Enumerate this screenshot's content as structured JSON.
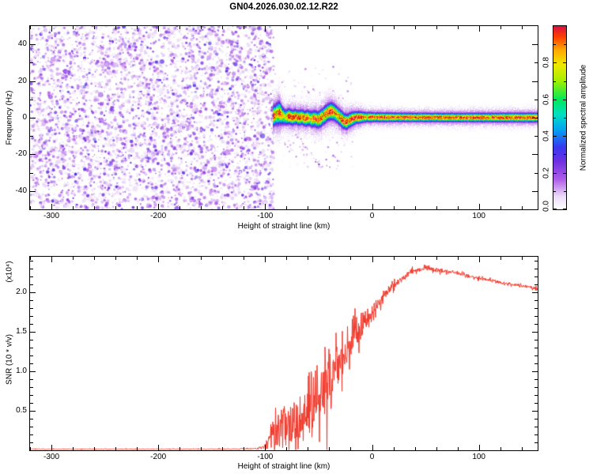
{
  "title": "GN04.2026.030.02.12.R22",
  "background": "#ffffff",
  "chart_data": [
    {
      "type": "heatmap",
      "name": "spectrogram",
      "xlabel": "Height of straight line (km)",
      "ylabel": "Frequency (Hz)",
      "xlim": [
        -320,
        155
      ],
      "ylim": [
        -50,
        50
      ],
      "xticks": {
        "values": [
          -300,
          -200,
          -100,
          0,
          100
        ],
        "labels": [
          "-300",
          "-200",
          "-100",
          "0",
          "100"
        ]
      },
      "yticks": {
        "values": [
          -40,
          -20,
          0,
          20,
          40
        ],
        "labels": [
          "-40",
          "-20",
          "0",
          "20",
          "40"
        ]
      },
      "colorbar": {
        "label": "Normalized spectral amplitude",
        "range": [
          0,
          1
        ],
        "tick_values": [
          0,
          0.2,
          0.4,
          0.6,
          0.8
        ],
        "tick_labels": [
          "0.0",
          "0.2",
          "0.4",
          "0.6",
          "0.8"
        ],
        "colormap_stops": [
          [
            0.0,
            "#ffffff"
          ],
          [
            0.07,
            "#ecdcf8"
          ],
          [
            0.16,
            "#b060e8"
          ],
          [
            0.26,
            "#7030e0"
          ],
          [
            0.34,
            "#3838f0"
          ],
          [
            0.44,
            "#00a8f0"
          ],
          [
            0.52,
            "#00e0c0"
          ],
          [
            0.6,
            "#00e858"
          ],
          [
            0.7,
            "#a0f000"
          ],
          [
            0.79,
            "#f0e800"
          ],
          [
            0.87,
            "#ffa800"
          ],
          [
            0.94,
            "#ff4000"
          ],
          [
            1.0,
            "#d81040"
          ]
        ]
      },
      "noise_region": {
        "x_range": [
          -320,
          -92
        ],
        "description": "dense violet speckle noise covering all frequencies before signal acquisition"
      },
      "signal_band": {
        "x_range": [
          -93,
          155
        ],
        "core_amplitude": 1.0,
        "center_hz_anchors": [
          [
            -93,
            1.0
          ],
          [
            -90,
            2.2
          ],
          [
            -87,
            2.8
          ],
          [
            -84,
            1.2
          ],
          [
            -81,
            0.4
          ],
          [
            -78,
            1.0
          ],
          [
            -75,
            0.2
          ],
          [
            -72,
            0.8
          ],
          [
            -69,
            0.1
          ],
          [
            -66,
            0.6
          ],
          [
            -63,
            -0.3
          ],
          [
            -60,
            0.2
          ],
          [
            -57,
            -0.6
          ],
          [
            -54,
            -0.2
          ],
          [
            -51,
            -1.0
          ],
          [
            -48,
            0.0
          ],
          [
            -45,
            1.5
          ],
          [
            -42,
            3.0
          ],
          [
            -39,
            3.8
          ],
          [
            -36,
            3.3
          ],
          [
            -33,
            1.8
          ],
          [
            -30,
            0.2
          ],
          [
            -27,
            -1.5
          ],
          [
            -24,
            -2.0
          ],
          [
            -21,
            -1.0
          ],
          [
            -18,
            -0.2
          ],
          [
            -15,
            0.3
          ],
          [
            -10,
            0.5
          ],
          [
            0,
            0.5
          ],
          [
            30,
            0.4
          ],
          [
            80,
            0.3
          ],
          [
            155,
            0.3
          ]
        ],
        "width_hz_anchors": [
          [
            -93,
            3.2
          ],
          [
            -88,
            3.8
          ],
          [
            -82,
            2.6
          ],
          [
            -75,
            2.4
          ],
          [
            -65,
            2.4
          ],
          [
            -55,
            2.6
          ],
          [
            -45,
            2.8
          ],
          [
            -38,
            2.8
          ],
          [
            -30,
            2.6
          ],
          [
            -22,
            2.4
          ],
          [
            -15,
            2.0
          ],
          [
            -8,
            1.7
          ],
          [
            0,
            1.5
          ],
          [
            40,
            1.4
          ],
          [
            155,
            1.5
          ]
        ]
      },
      "diagonal_streak": {
        "from_km_hz": [
          -76,
          -5
        ],
        "to_km_hz": [
          -48,
          -27
        ]
      }
    },
    {
      "type": "line",
      "name": "snr",
      "xlabel": "Height of straight line (km)",
      "ylabel": "SNR (10 * v/v)",
      "ylabel_scale": "(x10⁴)",
      "xlim": [
        -320,
        155
      ],
      "ylim": [
        0,
        2.45
      ],
      "xticks": {
        "values": [
          -300,
          -200,
          -100,
          0,
          100
        ],
        "labels": [
          "-300",
          "-200",
          "-100",
          "0",
          "100"
        ]
      },
      "yticks": {
        "values": [
          0.5,
          1.0,
          1.5,
          2.0
        ],
        "labels": [
          "0.5",
          "1.0",
          "1.5",
          "2.0"
        ]
      },
      "line_color": "#ee3527",
      "series": [
        {
          "name": "SNR",
          "mean_anchors": [
            [
              -320,
              0.015
            ],
            [
              -150,
              0.015
            ],
            [
              -108,
              0.02
            ],
            [
              -100,
              0.05
            ],
            [
              -96,
              0.15
            ],
            [
              -92,
              0.25
            ],
            [
              -86,
              0.3
            ],
            [
              -80,
              0.32
            ],
            [
              -74,
              0.35
            ],
            [
              -68,
              0.4
            ],
            [
              -62,
              0.45
            ],
            [
              -56,
              0.55
            ],
            [
              -50,
              0.65
            ],
            [
              -46,
              0.75
            ],
            [
              -42,
              0.85
            ],
            [
              -38,
              0.95
            ],
            [
              -34,
              1.05
            ],
            [
              -30,
              1.1
            ],
            [
              -26,
              1.2
            ],
            [
              -22,
              1.3
            ],
            [
              -18,
              1.35
            ],
            [
              -14,
              1.45
            ],
            [
              -10,
              1.55
            ],
            [
              -6,
              1.65
            ],
            [
              -2,
              1.7
            ],
            [
              2,
              1.78
            ],
            [
              8,
              1.9
            ],
            [
              14,
              2.0
            ],
            [
              20,
              2.08
            ],
            [
              28,
              2.18
            ],
            [
              36,
              2.25
            ],
            [
              44,
              2.29
            ],
            [
              52,
              2.31
            ],
            [
              60,
              2.28
            ],
            [
              70,
              2.26
            ],
            [
              80,
              2.24
            ],
            [
              90,
              2.21
            ],
            [
              100,
              2.18
            ],
            [
              115,
              2.14
            ],
            [
              130,
              2.1
            ],
            [
              145,
              2.07
            ],
            [
              155,
              2.05
            ]
          ],
          "noise_amp_anchors": [
            [
              -320,
              0.008
            ],
            [
              -150,
              0.008
            ],
            [
              -108,
              0.012
            ],
            [
              -100,
              0.06
            ],
            [
              -96,
              0.18
            ],
            [
              -92,
              0.3
            ],
            [
              -86,
              0.38
            ],
            [
              -80,
              0.4
            ],
            [
              -74,
              0.42
            ],
            [
              -68,
              0.45
            ],
            [
              -62,
              0.5
            ],
            [
              -56,
              0.55
            ],
            [
              -50,
              0.6
            ],
            [
              -46,
              0.65
            ],
            [
              -42,
              0.7
            ],
            [
              -38,
              0.7
            ],
            [
              -34,
              0.6
            ],
            [
              -30,
              0.55
            ],
            [
              -26,
              0.45
            ],
            [
              -22,
              0.4
            ],
            [
              -18,
              0.35
            ],
            [
              -14,
              0.3
            ],
            [
              -10,
              0.25
            ],
            [
              -6,
              0.2
            ],
            [
              -2,
              0.18
            ],
            [
              2,
              0.15
            ],
            [
              8,
              0.12
            ],
            [
              14,
              0.1
            ],
            [
              20,
              0.08
            ],
            [
              28,
              0.06
            ],
            [
              36,
              0.05
            ],
            [
              44,
              0.05
            ],
            [
              52,
              0.06
            ],
            [
              60,
              0.05
            ],
            [
              70,
              0.04
            ],
            [
              80,
              0.04
            ],
            [
              90,
              0.035
            ],
            [
              100,
              0.035
            ],
            [
              115,
              0.03
            ],
            [
              130,
              0.03
            ],
            [
              145,
              0.03
            ],
            [
              155,
              0.03
            ]
          ]
        }
      ]
    }
  ]
}
